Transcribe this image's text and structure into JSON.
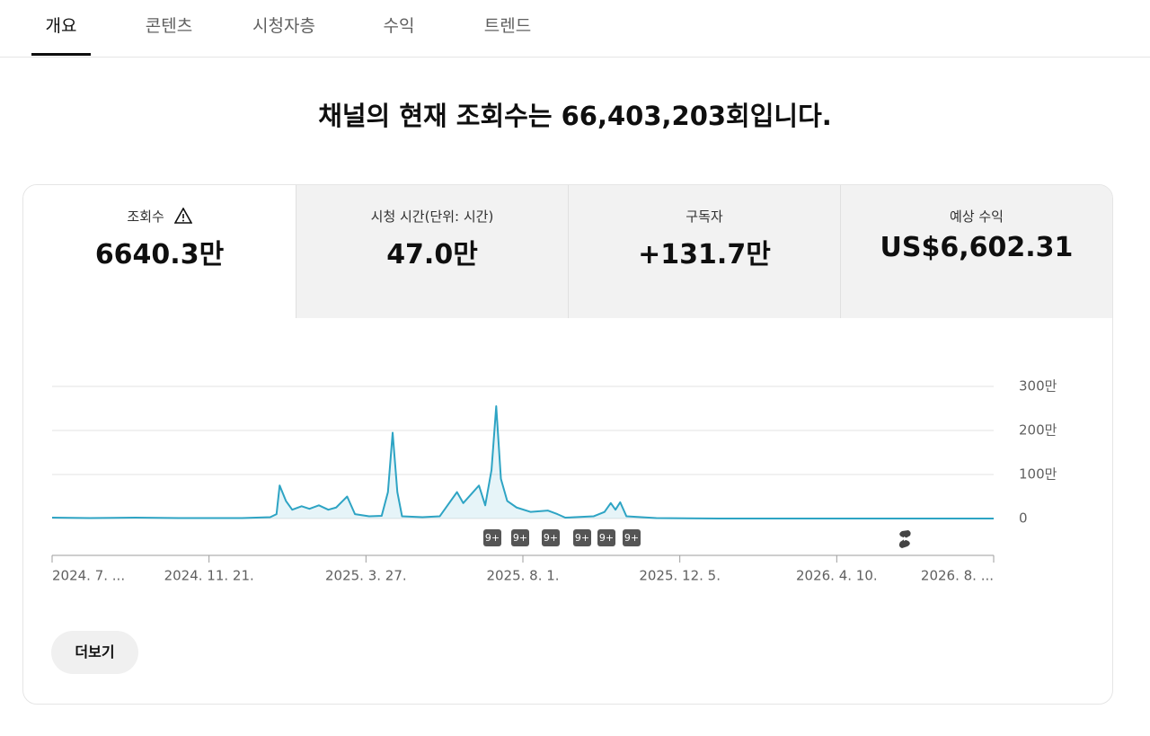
{
  "tabs": [
    "개요",
    "콘텐츠",
    "시청자층",
    "수익",
    "트렌드"
  ],
  "headline": "채널의 현재 조회수는 66,403,203회입니다.",
  "metrics": [
    {
      "label": "조회수",
      "value": "6640.3만"
    },
    {
      "label": "시청 시간(단위: 시간)",
      "value": "47.0만"
    },
    {
      "label": "구독자",
      "value": "+131.7만"
    },
    {
      "label": "예상 수익",
      "value": "US$6,602.31"
    }
  ],
  "more_button": "더보기",
  "chart_data": {
    "type": "line",
    "color": "#2ea4c4",
    "grid": true,
    "x": [
      0,
      0.24,
      0.53,
      0.81,
      1.21,
      1.39,
      1.43,
      1.45,
      1.49,
      1.53,
      1.59,
      1.64,
      1.7,
      1.76,
      1.81,
      1.88,
      1.93,
      2.02,
      2.1,
      2.14,
      2.17,
      2.2,
      2.23,
      2.36,
      2.47,
      2.52,
      2.58,
      2.62,
      2.67,
      2.72,
      2.76,
      2.8,
      2.83,
      2.86,
      2.9,
      2.96,
      3.05,
      3.16,
      3.22,
      3.27,
      3.45,
      3.52,
      3.56,
      3.59,
      3.62,
      3.66,
      3.85,
      4.25,
      6
    ],
    "values": [
      20000,
      10000,
      20000,
      10000,
      10000,
      30000,
      100000,
      750000,
      400000,
      200000,
      280000,
      220000,
      300000,
      200000,
      250000,
      500000,
      100000,
      50000,
      60000,
      600000,
      1950000,
      600000,
      50000,
      30000,
      50000,
      300000,
      600000,
      350000,
      550000,
      750000,
      300000,
      1100000,
      2550000,
      900000,
      400000,
      250000,
      150000,
      180000,
      100000,
      20000,
      50000,
      150000,
      350000,
      200000,
      370000,
      50000,
      10000,
      0,
      0
    ],
    "xlim": [
      0,
      6
    ],
    "xticks": [
      {
        "value": 0,
        "label": "2024. 7. ..."
      },
      {
        "value": 1,
        "label": "2024. 11. 21."
      },
      {
        "value": 2,
        "label": "2025. 3. 27."
      },
      {
        "value": 3,
        "label": "2025. 8. 1."
      },
      {
        "value": 4,
        "label": "2025. 12. 5."
      },
      {
        "value": 5,
        "label": "2026. 4. 10."
      },
      {
        "value": 6,
        "label": "2026. 8. ..."
      }
    ],
    "ylim": [
      0,
      3000000
    ],
    "yticks": [
      {
        "value": 0,
        "label": "0"
      },
      {
        "value": 1000000,
        "label": "100만"
      },
      {
        "value": 2000000,
        "label": "200만"
      },
      {
        "value": 3000000,
        "label": "300만"
      }
    ],
    "markers": [
      "9+",
      "9+",
      "9+",
      "9+",
      "9+",
      "9+"
    ]
  }
}
